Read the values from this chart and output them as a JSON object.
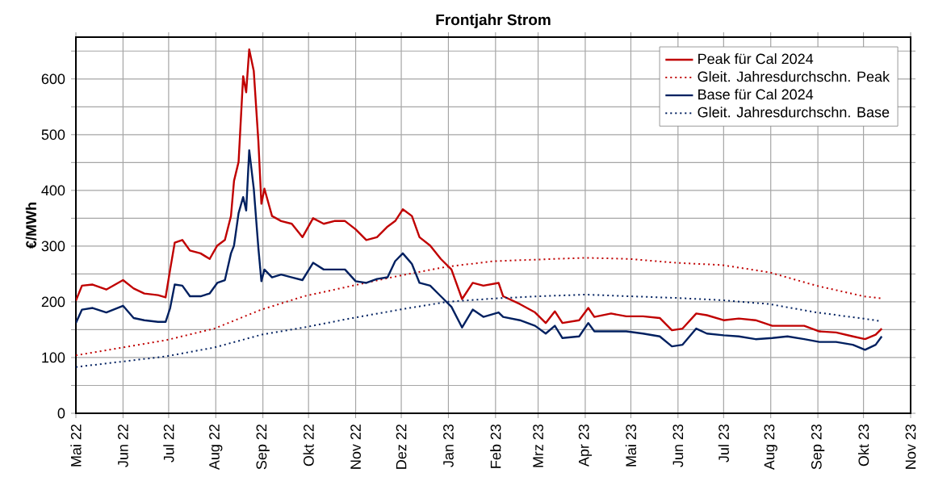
{
  "chart_data": {
    "type": "line",
    "title": "Frontjahr Strom",
    "ylabel": "€/MWh",
    "xlim": [
      "2022-05-01",
      "2023-11-01"
    ],
    "xticks": [
      {
        "value": "2022-05-01",
        "label": "Mai 22"
      },
      {
        "value": "2022-06-01",
        "label": "Jun 22"
      },
      {
        "value": "2022-07-01",
        "label": "Jul 22"
      },
      {
        "value": "2022-08-01",
        "label": "Aug 22"
      },
      {
        "value": "2022-09-01",
        "label": "Sep 22"
      },
      {
        "value": "2022-10-01",
        "label": "Okt 22"
      },
      {
        "value": "2022-11-01",
        "label": "Nov 22"
      },
      {
        "value": "2022-12-01",
        "label": "Dez 22"
      },
      {
        "value": "2023-01-01",
        "label": "Jan 23"
      },
      {
        "value": "2023-02-01",
        "label": "Feb 23"
      },
      {
        "value": "2023-03-01",
        "label": "Mrz 23"
      },
      {
        "value": "2023-04-01",
        "label": "Apr 23"
      },
      {
        "value": "2023-05-01",
        "label": "Mai 23"
      },
      {
        "value": "2023-06-01",
        "label": "Jun 23"
      },
      {
        "value": "2023-07-01",
        "label": "Jul 23"
      },
      {
        "value": "2023-08-01",
        "label": "Aug 23"
      },
      {
        "value": "2023-09-01",
        "label": "Sep 23"
      },
      {
        "value": "2023-10-01",
        "label": "Okt 23"
      },
      {
        "value": "2023-11-01",
        "label": "Nov 23"
      }
    ],
    "ylim": [
      0,
      675
    ],
    "yticks": [
      0,
      {
        "value": 50,
        "label": null
      },
      100,
      {
        "value": 150,
        "label": null
      },
      200,
      {
        "value": 250,
        "label": null
      },
      300,
      {
        "value": 350,
        "label": null
      },
      400,
      {
        "value": 450,
        "label": null
      },
      500,
      {
        "value": 550,
        "label": null
      },
      600,
      {
        "value": 650,
        "label": null
      }
    ],
    "grid": true,
    "legend": "top right",
    "marker": "none",
    "series": [
      {
        "name": "Peak für Cal 2024",
        "color": "#c00000",
        "line_style": "solid",
        "x": [
          "2022-05-01",
          "2022-05-05",
          "2022-05-12",
          "2022-05-21",
          "2022-06-01",
          "2022-06-08",
          "2022-06-15",
          "2022-06-24",
          "2022-06-29",
          "2022-07-02",
          "2022-07-05",
          "2022-07-10",
          "2022-07-15",
          "2022-07-22",
          "2022-07-28",
          "2022-08-02",
          "2022-08-07",
          "2022-08-11",
          "2022-08-13",
          "2022-08-16",
          "2022-08-19",
          "2022-08-21",
          "2022-08-23",
          "2022-08-26",
          "2022-08-29",
          "2022-08-31",
          "2022-09-02",
          "2022-09-07",
          "2022-09-13",
          "2022-09-20",
          "2022-09-27",
          "2022-10-04",
          "2022-10-11",
          "2022-10-18",
          "2022-10-25",
          "2022-11-01",
          "2022-11-08",
          "2022-11-15",
          "2022-11-22",
          "2022-11-27",
          "2022-12-02",
          "2022-12-08",
          "2022-12-13",
          "2022-12-20",
          "2022-12-27",
          "2023-01-03",
          "2023-01-10",
          "2023-01-17",
          "2023-01-24",
          "2023-02-03",
          "2023-02-06",
          "2023-02-17",
          "2023-02-27",
          "2023-03-06",
          "2023-03-12",
          "2023-03-17",
          "2023-03-28",
          "2023-04-03",
          "2023-04-07",
          "2023-04-18",
          "2023-04-28",
          "2023-05-09",
          "2023-05-20",
          "2023-05-28",
          "2023-06-04",
          "2023-06-13",
          "2023-06-20",
          "2023-07-01",
          "2023-07-11",
          "2023-07-22",
          "2023-08-02",
          "2023-08-12",
          "2023-08-23",
          "2023-09-02",
          "2023-09-13",
          "2023-09-24",
          "2023-10-02",
          "2023-10-09",
          "2023-10-13"
        ],
        "values": [
          202,
          229,
          231,
          222,
          239,
          224,
          215,
          212,
          208,
          258,
          306,
          311,
          292,
          287,
          277,
          301,
          311,
          354,
          417,
          451,
          605,
          576,
          653,
          614,
          489,
          376,
          403,
          354,
          345,
          340,
          316,
          350,
          340,
          345,
          345,
          330,
          311,
          316,
          335,
          345,
          366,
          354,
          316,
          301,
          277,
          258,
          205,
          234,
          229,
          234,
          210,
          196,
          181,
          162,
          183,
          162,
          167,
          189,
          173,
          179,
          174,
          174,
          171,
          149,
          152,
          179,
          176,
          167,
          170,
          167,
          157,
          157,
          157,
          147,
          145,
          138,
          133,
          141,
          152
        ]
      },
      {
        "name": "Gleit. Jahresdurchschn. Peak",
        "color": "#c00000",
        "line_style": "dotted",
        "x": [
          "2022-05-01",
          "2022-06-29",
          "2022-07-31",
          "2022-08-31",
          "2022-09-28",
          "2022-10-30",
          "2022-11-30",
          "2022-12-31",
          "2023-01-31",
          "2023-03-02",
          "2023-04-01",
          "2023-04-30",
          "2023-05-31",
          "2023-06-30",
          "2023-07-31",
          "2023-08-31",
          "2023-10-01",
          "2023-10-13"
        ],
        "values": [
          104,
          131,
          152,
          186,
          210,
          229,
          247,
          263,
          273,
          276,
          279,
          277,
          270,
          266,
          253,
          229,
          210,
          206
        ]
      },
      {
        "name": "Base für Cal 2024",
        "color": "#002060",
        "line_style": "solid",
        "x": [
          "2022-05-01",
          "2022-05-05",
          "2022-05-12",
          "2022-05-21",
          "2022-06-01",
          "2022-06-08",
          "2022-06-15",
          "2022-06-24",
          "2022-06-29",
          "2022-07-02",
          "2022-07-05",
          "2022-07-10",
          "2022-07-15",
          "2022-07-22",
          "2022-07-28",
          "2022-08-02",
          "2022-08-07",
          "2022-08-11",
          "2022-08-13",
          "2022-08-16",
          "2022-08-19",
          "2022-08-21",
          "2022-08-23",
          "2022-08-26",
          "2022-08-29",
          "2022-08-31",
          "2022-09-02",
          "2022-09-07",
          "2022-09-13",
          "2022-09-20",
          "2022-09-27",
          "2022-10-04",
          "2022-10-11",
          "2022-10-18",
          "2022-10-25",
          "2022-11-01",
          "2022-11-08",
          "2022-11-15",
          "2022-11-22",
          "2022-11-27",
          "2022-12-02",
          "2022-12-08",
          "2022-12-13",
          "2022-12-20",
          "2022-12-27",
          "2023-01-03",
          "2023-01-10",
          "2023-01-17",
          "2023-01-24",
          "2023-02-03",
          "2023-02-06",
          "2023-02-17",
          "2023-02-27",
          "2023-03-06",
          "2023-03-12",
          "2023-03-17",
          "2023-03-28",
          "2023-04-03",
          "2023-04-07",
          "2023-04-18",
          "2023-04-28",
          "2023-05-09",
          "2023-05-20",
          "2023-05-28",
          "2023-06-04",
          "2023-06-13",
          "2023-06-20",
          "2023-07-01",
          "2023-07-11",
          "2023-07-22",
          "2023-08-02",
          "2023-08-12",
          "2023-08-23",
          "2023-09-02",
          "2023-09-13",
          "2023-09-24",
          "2023-10-02",
          "2023-10-09",
          "2023-10-13"
        ],
        "values": [
          162,
          186,
          189,
          181,
          193,
          171,
          167,
          164,
          164,
          189,
          231,
          229,
          210,
          210,
          215,
          234,
          239,
          287,
          301,
          359,
          388,
          364,
          472,
          403,
          297,
          237,
          258,
          244,
          249,
          244,
          239,
          270,
          258,
          258,
          258,
          237,
          234,
          241,
          244,
          273,
          287,
          268,
          234,
          229,
          210,
          191,
          154,
          186,
          173,
          181,
          173,
          167,
          157,
          143,
          157,
          135,
          138,
          162,
          147,
          147,
          147,
          143,
          138,
          120,
          123,
          152,
          143,
          140,
          138,
          133,
          135,
          138,
          133,
          128,
          128,
          123,
          114,
          123,
          138
        ]
      },
      {
        "name": "Gleit. Jahresdurchschn. Base",
        "color": "#002060",
        "line_style": "dotted",
        "x": [
          "2022-05-01",
          "2022-06-29",
          "2022-07-31",
          "2022-08-31",
          "2022-09-28",
          "2022-10-30",
          "2022-11-30",
          "2022-12-31",
          "2023-01-31",
          "2023-03-02",
          "2023-04-01",
          "2023-04-30",
          "2023-05-31",
          "2023-06-30",
          "2023-07-31",
          "2023-08-31",
          "2023-10-01",
          "2023-10-13"
        ],
        "values": [
          83,
          102,
          118,
          141,
          154,
          171,
          186,
          200,
          206,
          210,
          213,
          210,
          207,
          203,
          196,
          181,
          170,
          165
        ]
      }
    ]
  }
}
